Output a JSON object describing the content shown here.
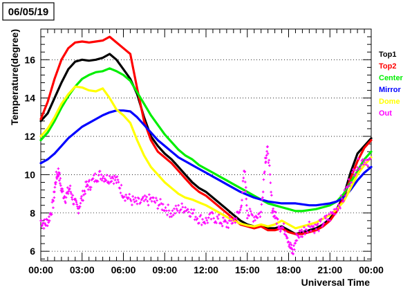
{
  "chart_data": {
    "type": "scatter",
    "title": "06/05/19",
    "xlabel": "Universal Time",
    "ylabel": "Temperature(degree)",
    "xlim": [
      0,
      24
    ],
    "ylim": [
      5.5,
      17.6
    ],
    "x_ticks": [
      "00:00",
      "03:00",
      "06:00",
      "09:00",
      "12:00",
      "15:00",
      "18:00",
      "21:00",
      "00:00"
    ],
    "x_tick_hours": [
      0,
      3,
      6,
      9,
      12,
      15,
      18,
      21,
      24
    ],
    "y_ticks": [
      "6",
      "8",
      "10",
      "12",
      "14",
      "16"
    ],
    "y_tick_values": [
      6,
      8,
      10,
      12,
      14,
      16
    ],
    "grid": "horizontal dotted",
    "legend_position": "right",
    "series": [
      {
        "name": "Top1",
        "color": "#000000",
        "points": [
          [
            0,
            12.8
          ],
          [
            0.5,
            13.2
          ],
          [
            1,
            14.0
          ],
          [
            1.5,
            14.8
          ],
          [
            2,
            15.5
          ],
          [
            2.5,
            15.9
          ],
          [
            3,
            16.0
          ],
          [
            3.5,
            15.95
          ],
          [
            4,
            16.0
          ],
          [
            4.5,
            16.1
          ],
          [
            5,
            16.3
          ],
          [
            5.5,
            16.0
          ],
          [
            6,
            15.5
          ],
          [
            6.5,
            15.0
          ],
          [
            7,
            14.2
          ],
          [
            7.5,
            13.0
          ],
          [
            8,
            12.0
          ],
          [
            8.5,
            11.5
          ],
          [
            9,
            11.1
          ],
          [
            9.5,
            10.8
          ],
          [
            10,
            10.4
          ],
          [
            10.5,
            10.0
          ],
          [
            11,
            9.6
          ],
          [
            11.5,
            9.3
          ],
          [
            12,
            9.1
          ],
          [
            12.5,
            8.8
          ],
          [
            13,
            8.5
          ],
          [
            13.5,
            8.2
          ],
          [
            14,
            7.9
          ],
          [
            14.5,
            7.6
          ],
          [
            15,
            7.4
          ],
          [
            15.5,
            7.3
          ],
          [
            16,
            7.3
          ],
          [
            16.5,
            7.2
          ],
          [
            17,
            7.2
          ],
          [
            17.5,
            7.3
          ],
          [
            18,
            7.1
          ],
          [
            18.5,
            6.9
          ],
          [
            19,
            7.0
          ],
          [
            19.5,
            7.1
          ],
          [
            20,
            7.2
          ],
          [
            20.5,
            7.4
          ],
          [
            21,
            7.7
          ],
          [
            21.5,
            8.2
          ],
          [
            22,
            8.9
          ],
          [
            22.5,
            10.1
          ],
          [
            23,
            11.1
          ],
          [
            23.5,
            11.5
          ],
          [
            24,
            11.9
          ]
        ]
      },
      {
        "name": "Top2",
        "color": "#ff0000",
        "points": [
          [
            0,
            12.9
          ],
          [
            0.5,
            13.8
          ],
          [
            1,
            15.0
          ],
          [
            1.5,
            16.0
          ],
          [
            2,
            16.6
          ],
          [
            2.5,
            16.9
          ],
          [
            3,
            16.95
          ],
          [
            3.5,
            16.9
          ],
          [
            4,
            16.95
          ],
          [
            4.5,
            17.0
          ],
          [
            5,
            17.2
          ],
          [
            5.5,
            16.9
          ],
          [
            6,
            16.6
          ],
          [
            6.5,
            16.3
          ],
          [
            7,
            14.5
          ],
          [
            7.5,
            12.8
          ],
          [
            8,
            11.8
          ],
          [
            8.5,
            11.2
          ],
          [
            9,
            10.9
          ],
          [
            9.5,
            10.6
          ],
          [
            10,
            10.2
          ],
          [
            10.5,
            9.8
          ],
          [
            11,
            9.4
          ],
          [
            11.5,
            9.1
          ],
          [
            12,
            8.9
          ],
          [
            12.5,
            8.6
          ],
          [
            13,
            8.3
          ],
          [
            13.5,
            8.0
          ],
          [
            14,
            7.7
          ],
          [
            14.5,
            7.4
          ],
          [
            15,
            7.3
          ],
          [
            15.5,
            7.2
          ],
          [
            16,
            7.3
          ],
          [
            16.5,
            7.1
          ],
          [
            17,
            7.1
          ],
          [
            17.5,
            7.2
          ],
          [
            18,
            7.0
          ],
          [
            18.5,
            6.9
          ],
          [
            19,
            6.9
          ],
          [
            19.5,
            7.0
          ],
          [
            20,
            7.1
          ],
          [
            20.5,
            7.3
          ],
          [
            21,
            7.6
          ],
          [
            21.5,
            8.1
          ],
          [
            22,
            8.8
          ],
          [
            22.5,
            9.8
          ],
          [
            23,
            10.7
          ],
          [
            23.5,
            11.4
          ],
          [
            24,
            11.8
          ]
        ]
      },
      {
        "name": "Center",
        "color": "#00ee00",
        "points": [
          [
            0,
            11.8
          ],
          [
            0.5,
            12.2
          ],
          [
            1,
            12.8
          ],
          [
            1.5,
            13.5
          ],
          [
            2,
            14.1
          ],
          [
            2.5,
            14.6
          ],
          [
            3,
            15.0
          ],
          [
            3.5,
            15.2
          ],
          [
            4,
            15.35
          ],
          [
            4.5,
            15.4
          ],
          [
            5,
            15.55
          ],
          [
            5.5,
            15.4
          ],
          [
            6,
            15.2
          ],
          [
            6.5,
            14.9
          ],
          [
            7,
            14.3
          ],
          [
            7.5,
            13.7
          ],
          [
            8,
            13.1
          ],
          [
            8.5,
            12.6
          ],
          [
            9,
            12.1
          ],
          [
            9.5,
            11.7
          ],
          [
            10,
            11.3
          ],
          [
            10.5,
            11.0
          ],
          [
            11,
            10.8
          ],
          [
            11.5,
            10.5
          ],
          [
            12,
            10.3
          ],
          [
            12.5,
            10.1
          ],
          [
            13,
            9.9
          ],
          [
            13.5,
            9.7
          ],
          [
            14,
            9.5
          ],
          [
            14.5,
            9.3
          ],
          [
            15,
            9.1
          ],
          [
            15.5,
            8.9
          ],
          [
            16,
            8.7
          ],
          [
            16.5,
            8.5
          ],
          [
            17,
            8.4
          ],
          [
            17.5,
            8.3
          ],
          [
            18,
            8.2
          ],
          [
            18.5,
            8.1
          ],
          [
            19,
            8.1
          ],
          [
            19.5,
            8.15
          ],
          [
            20,
            8.2
          ],
          [
            20.5,
            8.3
          ],
          [
            21,
            8.4
          ],
          [
            21.5,
            8.6
          ],
          [
            22,
            9.0
          ],
          [
            22.5,
            9.6
          ],
          [
            23,
            10.2
          ],
          [
            23.5,
            10.8
          ],
          [
            24,
            11.2
          ]
        ]
      },
      {
        "name": "Mirror",
        "color": "#0000ff",
        "points": [
          [
            0,
            10.6
          ],
          [
            0.5,
            10.8
          ],
          [
            1,
            11.1
          ],
          [
            1.5,
            11.5
          ],
          [
            2,
            11.9
          ],
          [
            2.5,
            12.2
          ],
          [
            3,
            12.5
          ],
          [
            3.5,
            12.7
          ],
          [
            4,
            12.9
          ],
          [
            4.5,
            13.1
          ],
          [
            5,
            13.25
          ],
          [
            5.5,
            13.35
          ],
          [
            6,
            13.35
          ],
          [
            6.5,
            13.3
          ],
          [
            7,
            13.0
          ],
          [
            7.5,
            12.6
          ],
          [
            8,
            12.2
          ],
          [
            8.5,
            11.8
          ],
          [
            9,
            11.5
          ],
          [
            9.5,
            11.2
          ],
          [
            10,
            10.9
          ],
          [
            10.5,
            10.7
          ],
          [
            11,
            10.5
          ],
          [
            11.5,
            10.3
          ],
          [
            12,
            10.1
          ],
          [
            12.5,
            9.9
          ],
          [
            13,
            9.7
          ],
          [
            13.5,
            9.5
          ],
          [
            14,
            9.3
          ],
          [
            14.5,
            9.1
          ],
          [
            15,
            8.95
          ],
          [
            15.5,
            8.8
          ],
          [
            16,
            8.7
          ],
          [
            16.5,
            8.6
          ],
          [
            17,
            8.55
          ],
          [
            17.5,
            8.5
          ],
          [
            18,
            8.5
          ],
          [
            18.5,
            8.5
          ],
          [
            19,
            8.45
          ],
          [
            19.5,
            8.4
          ],
          [
            20,
            8.4
          ],
          [
            20.5,
            8.45
          ],
          [
            21,
            8.5
          ],
          [
            21.5,
            8.6
          ],
          [
            22,
            8.8
          ],
          [
            22.5,
            9.2
          ],
          [
            23,
            9.7
          ],
          [
            23.5,
            10.1
          ],
          [
            24,
            10.4
          ]
        ]
      },
      {
        "name": "Dome",
        "color": "#ffff00",
        "points": [
          [
            0,
            12.0
          ],
          [
            0.5,
            12.4
          ],
          [
            1,
            13.0
          ],
          [
            1.5,
            13.7
          ],
          [
            2,
            14.2
          ],
          [
            2.5,
            14.6
          ],
          [
            3,
            14.55
          ],
          [
            3.5,
            14.4
          ],
          [
            4,
            14.35
          ],
          [
            4.5,
            14.5
          ],
          [
            5,
            14.0
          ],
          [
            5.5,
            13.4
          ],
          [
            6,
            13.1
          ],
          [
            6.5,
            12.7
          ],
          [
            7,
            11.8
          ],
          [
            7.5,
            11.0
          ],
          [
            8,
            10.4
          ],
          [
            8.5,
            10.0
          ],
          [
            9,
            9.6
          ],
          [
            9.5,
            9.3
          ],
          [
            10,
            9.0
          ],
          [
            10.5,
            8.8
          ],
          [
            11,
            8.7
          ],
          [
            11.5,
            8.55
          ],
          [
            12,
            8.4
          ],
          [
            12.5,
            8.2
          ],
          [
            13,
            8.0
          ],
          [
            13.5,
            7.8
          ],
          [
            14,
            7.6
          ],
          [
            14.5,
            7.45
          ],
          [
            15,
            7.35
          ],
          [
            15.5,
            7.3
          ],
          [
            16,
            7.4
          ],
          [
            16.5,
            7.3
          ],
          [
            17,
            7.4
          ],
          [
            17.5,
            7.6
          ],
          [
            18,
            7.4
          ],
          [
            18.5,
            7.2
          ],
          [
            19,
            7.3
          ],
          [
            19.5,
            7.4
          ],
          [
            20,
            7.5
          ],
          [
            20.5,
            7.7
          ],
          [
            21,
            7.9
          ],
          [
            21.5,
            8.2
          ],
          [
            22,
            8.6
          ],
          [
            22.5,
            9.3
          ],
          [
            23,
            10.0
          ],
          [
            23.5,
            10.5
          ],
          [
            24,
            10.9
          ]
        ]
      },
      {
        "name": "Out",
        "color": "#ff00ff",
        "points": [
          [
            0,
            7.6
          ],
          [
            0.3,
            7.4
          ],
          [
            0.6,
            7.7
          ],
          [
            0.9,
            8.5
          ],
          [
            1.1,
            9.8
          ],
          [
            1.3,
            10.2
          ],
          [
            1.5,
            9.2
          ],
          [
            1.8,
            8.8
          ],
          [
            2.1,
            9.3
          ],
          [
            2.4,
            8.6
          ],
          [
            2.7,
            8.2
          ],
          [
            3.0,
            8.8
          ],
          [
            3.3,
            9.4
          ],
          [
            3.6,
            9.5
          ],
          [
            4.0,
            9.9
          ],
          [
            4.4,
            10.0
          ],
          [
            4.8,
            9.8
          ],
          [
            5.2,
            9.9
          ],
          [
            5.6,
            9.6
          ],
          [
            6.0,
            9.0
          ],
          [
            6.5,
            8.7
          ],
          [
            7.0,
            8.5
          ],
          [
            7.5,
            8.6
          ],
          [
            8.0,
            8.7
          ],
          [
            8.5,
            8.5
          ],
          [
            9.0,
            8.3
          ],
          [
            9.5,
            8.0
          ],
          [
            10.0,
            8.2
          ],
          [
            10.5,
            8.3
          ],
          [
            11.0,
            8.0
          ],
          [
            11.5,
            7.7
          ],
          [
            12.0,
            7.6
          ],
          [
            12.5,
            7.8
          ],
          [
            13.0,
            7.6
          ],
          [
            13.5,
            7.4
          ],
          [
            14.0,
            7.6
          ],
          [
            14.5,
            8.1
          ],
          [
            14.8,
            10.2
          ],
          [
            15.0,
            8.0
          ],
          [
            15.5,
            7.8
          ],
          [
            16.0,
            8.0
          ],
          [
            16.3,
            10.8
          ],
          [
            16.5,
            11.3
          ],
          [
            16.8,
            8.3
          ],
          [
            17.1,
            7.7
          ],
          [
            17.4,
            7.3
          ],
          [
            17.8,
            7.1
          ],
          [
            18.1,
            6.3
          ],
          [
            18.3,
            5.9
          ],
          [
            18.6,
            6.8
          ],
          [
            19.0,
            7.0
          ],
          [
            19.5,
            7.4
          ],
          [
            20.0,
            7.2
          ],
          [
            20.5,
            7.5
          ],
          [
            21.0,
            7.8
          ],
          [
            21.5,
            8.3
          ],
          [
            22.0,
            8.8
          ],
          [
            22.5,
            9.8
          ],
          [
            23.0,
            10.5
          ],
          [
            23.5,
            10.8
          ],
          [
            24.0,
            10.7
          ]
        ]
      }
    ]
  }
}
